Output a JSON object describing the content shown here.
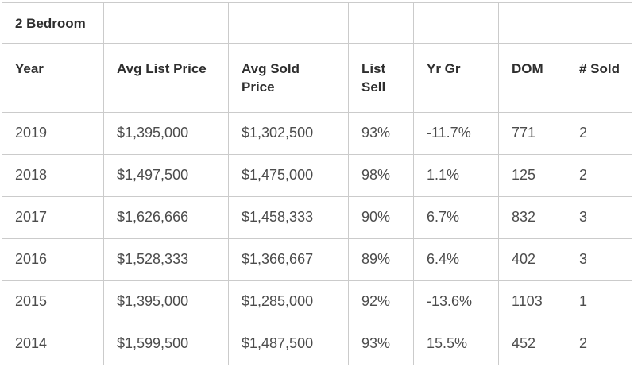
{
  "chart_data": {
    "type": "table",
    "title": "2 Bedroom",
    "columns": [
      "Year",
      "Avg List Price",
      "Avg Sold Price",
      "List Sell",
      "Yr Gr",
      "DOM",
      "# Sold"
    ],
    "rows": [
      [
        "2019",
        "$1,395,000",
        "$1,302,500",
        "93%",
        "-11.7%",
        "771",
        "2"
      ],
      [
        "2018",
        "$1,497,500",
        "$1,475,000",
        "98%",
        "1.1%",
        "125",
        "2"
      ],
      [
        "2017",
        "$1,626,666",
        "$1,458,333",
        "90%",
        "6.7%",
        "832",
        "3"
      ],
      [
        "2016",
        "$1,528,333",
        "$1,366,667",
        "89%",
        "6.4%",
        "402",
        "3"
      ],
      [
        "2015",
        "$1,395,000",
        "$1,285,000",
        "92%",
        "-13.6%",
        "1103",
        "1"
      ],
      [
        "2014",
        "$1,599,500",
        "$1,487,500",
        "93%",
        "15.5%",
        "452",
        "2"
      ]
    ]
  },
  "colors": {
    "border": "#cbcbcb",
    "header_text": "#2e2e2e",
    "body_text": "#4c4c4c",
    "background": "#ffffff"
  }
}
